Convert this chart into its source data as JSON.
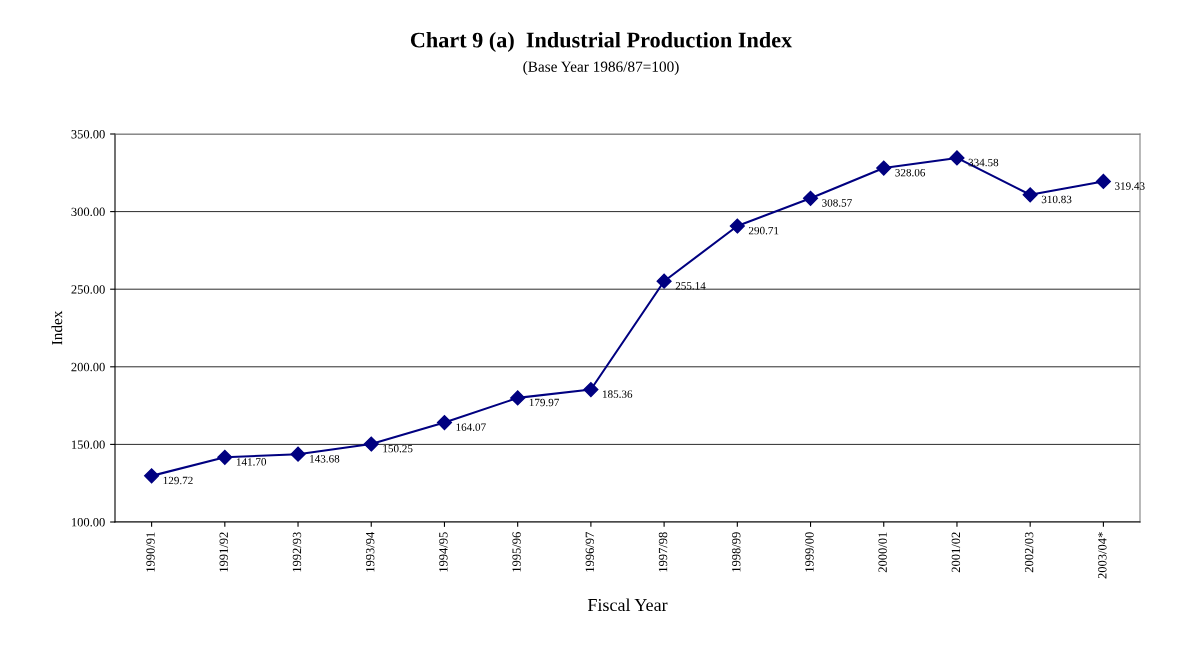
{
  "chart_data": {
    "type": "line",
    "title": "Chart 9 (a)  Industrial Production Index",
    "subtitle": "(Base Year 1986/87=100)",
    "xlabel": "Fiscal Year",
    "ylabel": "Index",
    "categories": [
      "1990/91",
      "1991/92",
      "1992/93",
      "1993/94",
      "1994/95",
      "1995/96",
      "1996/97",
      "1997/98",
      "1998/99",
      "1999/00",
      "2000/01",
      "2001/02",
      "2002/03",
      "2003/04*"
    ],
    "series": [
      {
        "color": "#000080",
        "values": [
          129.72,
          141.7,
          143.68,
          150.25,
          164.07,
          179.97,
          185.36,
          255.14,
          290.71,
          308.57,
          328.06,
          334.58,
          310.83,
          319.43
        ]
      }
    ],
    "value_labels": [
      "129.72",
      "141.70",
      "143.68",
      "150.25",
      "164.07",
      "179.97",
      "185.36",
      "255.14",
      "290.71",
      "308.57",
      "328.06",
      "334.58",
      "310.83",
      "319.43"
    ],
    "ylim": [
      100,
      350
    ],
    "yticks": [
      {
        "value": 100,
        "label": "100.00"
      },
      {
        "value": 150,
        "label": "150.00"
      },
      {
        "value": 200,
        "label": "200.00"
      },
      {
        "value": 250,
        "label": "250.00"
      },
      {
        "value": 300,
        "label": "300.00"
      },
      {
        "value": 350,
        "label": "350.00"
      }
    ],
    "grid": "y",
    "marker": "diamond",
    "line_style": "solid",
    "legend": false
  }
}
